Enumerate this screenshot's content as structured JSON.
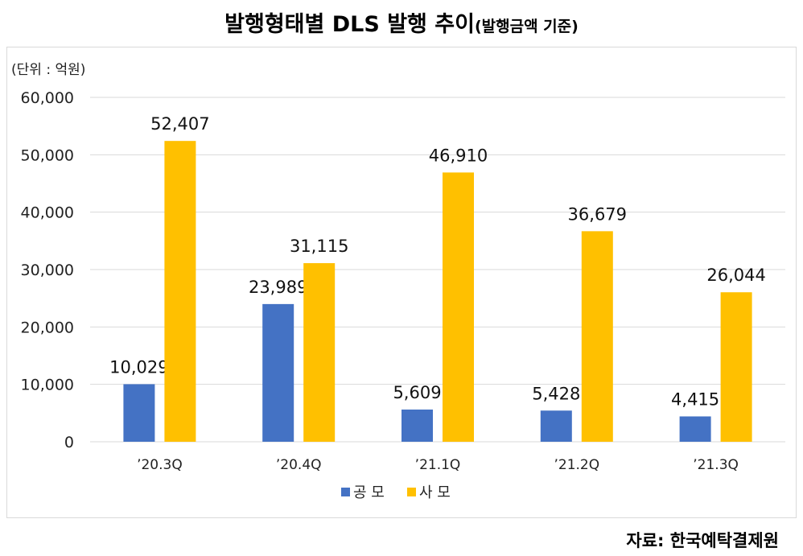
{
  "title": "발행형태별 DLS 발행 추이",
  "subtitle": "(발행금액 기준)",
  "unit_label": "(단위 : 억원)",
  "source": "자료: 한국예탁결제원",
  "colors": {
    "public": "#4472c4",
    "private": "#ffc000",
    "grid": "#d9d9d9"
  },
  "chart_data": {
    "type": "bar",
    "title": "발행형태별 DLS 발행 추이",
    "categories": [
      "’20.3Q",
      "’20.4Q",
      "’21.1Q",
      "’21.2Q",
      "’21.3Q"
    ],
    "series": [
      {
        "name": "공 모",
        "values": [
          10029,
          23989,
          5609,
          5428,
          4415
        ]
      },
      {
        "name": "사 모",
        "values": [
          52407,
          31115,
          46910,
          36679,
          26044
        ]
      }
    ],
    "data_labels": [
      [
        "10,029",
        "23,989",
        "5,609",
        "5,428",
        "4,415"
      ],
      [
        "52,407",
        "31,115",
        "46,910",
        "36,679",
        "26,044"
      ]
    ],
    "yticks": [
      "0",
      "10,000",
      "20,000",
      "30,000",
      "40,000",
      "50,000",
      "60,000"
    ],
    "ylim": [
      0,
      60000
    ],
    "grid": true,
    "legend": "bottom"
  }
}
